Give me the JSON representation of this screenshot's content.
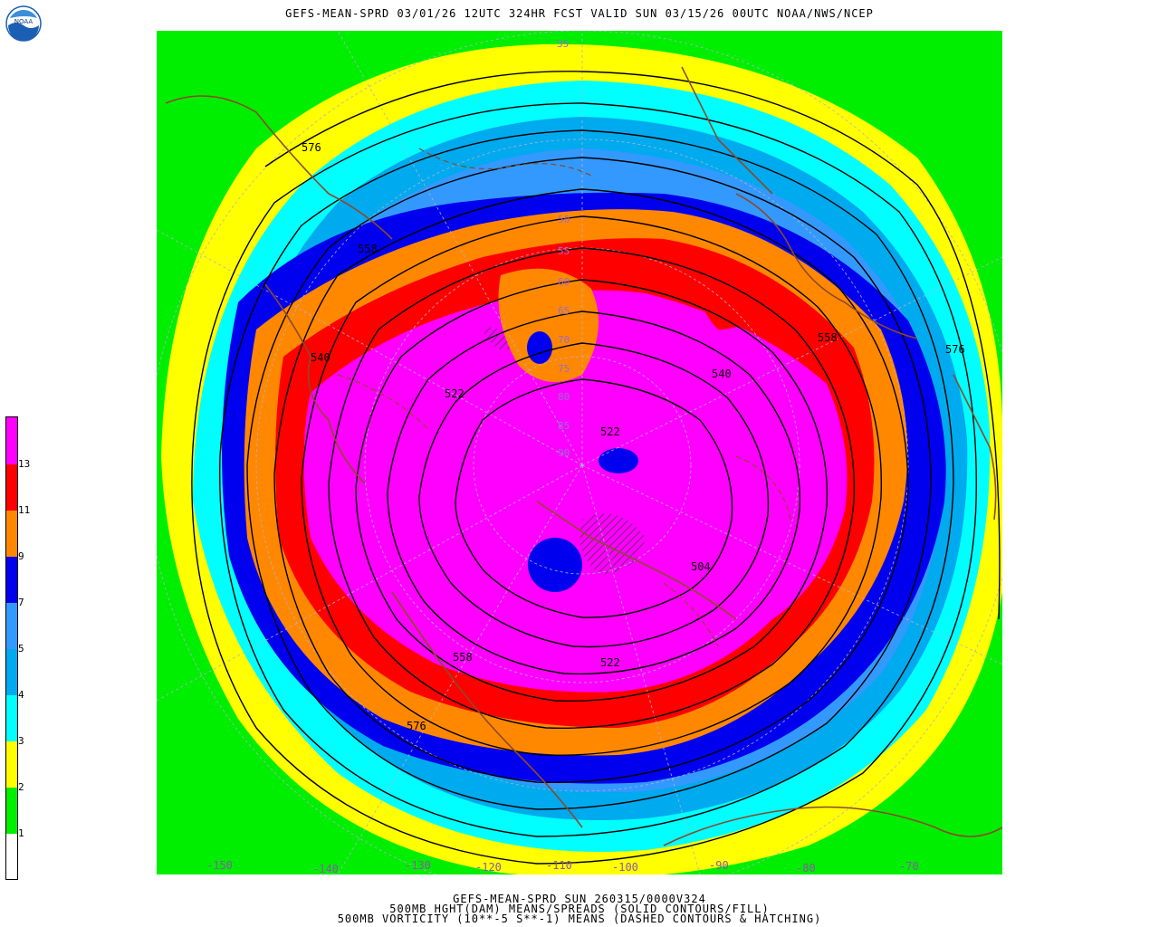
{
  "header": {
    "title": "GEFS-MEAN-SPRD 03/01/26 12UTC 324HR FCST VALID SUN 03/15/26 00UTC NOAA/NWS/NCEP",
    "logo_text": "NOAA"
  },
  "footer": {
    "line1": "GEFS-MEAN-SPRD SUN 260315/0000V324",
    "line2": "500MB HGHT(DAM) MEANS/SPREADS (SOLID CONTOURS/FILL)",
    "line3": "500MB VORTICITY (10**-5 S**-1) MEANS (DASHED CONTOURS & HATCHING)"
  },
  "colorbar": {
    "labels": [
      "1",
      "2",
      "3",
      "4",
      "5",
      "7",
      "9",
      "11",
      "13"
    ],
    "colors": [
      "#ffffff",
      "#00ee00",
      "#ffff00",
      "#00ffff",
      "#00aaee",
      "#3399ff",
      "#0000ee",
      "#ff8800",
      "#ff0000",
      "#ff00ff"
    ]
  },
  "map": {
    "contour_labels": [
      "576",
      "558",
      "540",
      "522",
      "540",
      "558",
      "576",
      "522",
      "504",
      "558",
      "576",
      "522"
    ],
    "longitude_labels": [
      "-150",
      "-140",
      "-130",
      "-120",
      "-110",
      "-100",
      "-90",
      "-80",
      "-70"
    ],
    "latitude_labels": [
      "35",
      "50",
      "55",
      "60",
      "65",
      "70",
      "75",
      "80",
      "85",
      "90"
    ],
    "colors": {
      "green": "#00ee00",
      "yellow": "#ffff00",
      "cyan": "#00ffff",
      "lightblue": "#00aaee",
      "medblue": "#3399ff",
      "blue": "#0000ee",
      "orange": "#ff8800",
      "red": "#ff0000",
      "magenta": "#ff00ff",
      "coast": "#8b4a2a"
    }
  }
}
